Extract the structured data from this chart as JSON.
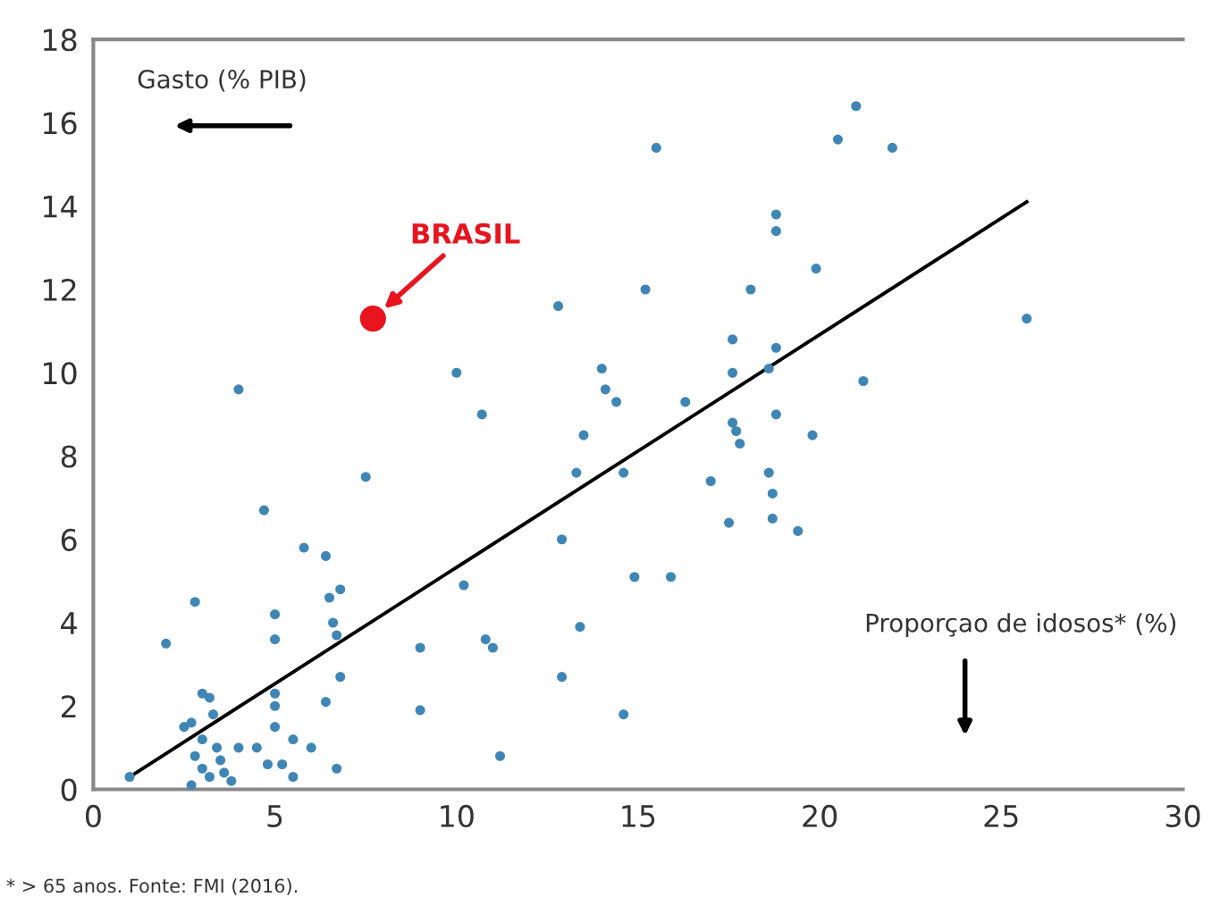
{
  "chart_data": {
    "type": "scatter",
    "xlim": [
      0,
      30
    ],
    "ylim": [
      0,
      18
    ],
    "xticks": [
      0,
      5,
      10,
      15,
      20,
      25,
      30
    ],
    "yticks": [
      0,
      2,
      4,
      6,
      8,
      10,
      12,
      14,
      16,
      18
    ],
    "grid": false,
    "annotations": [
      "Gasto (% PIB)",
      "Proporçao de idosos* (%)",
      "* > 65 anos. Fonte: FMI (2016)."
    ],
    "series": [
      {
        "marker": "circle",
        "color": "#3f86b5",
        "x": [
          1,
          2,
          2.5,
          2.7,
          2.8,
          3,
          3.2,
          3,
          3.3,
          2.8,
          3,
          3.2,
          2.7,
          3.5,
          3.8,
          3.4,
          3.6,
          4,
          4.5,
          4.8,
          4.7,
          4,
          5,
          5,
          5,
          5,
          5,
          5.2,
          5.5,
          5.5,
          5.8,
          6,
          6.4,
          6.5,
          6.8,
          6.6,
          6.7,
          6.8,
          6.4,
          6.7,
          7.5,
          9,
          9,
          10,
          10.2,
          10.7,
          10.8,
          11,
          11.2,
          12.8,
          12.9,
          12.9,
          13.3,
          13.5,
          13.4,
          14,
          14.1,
          14.4,
          14.6,
          14.6,
          14.9,
          15.2,
          15.5,
          15.9,
          16.3,
          17,
          17.5,
          17.6,
          17.7,
          17.8,
          17.6,
          17.6,
          18.1,
          18.6,
          18.6,
          18.7,
          18.8,
          18.7,
          18.8,
          18.8,
          18.8,
          19.4,
          19.9,
          19.8,
          20.5,
          21,
          21.2,
          22,
          25.7
        ],
        "values": [
          0.3,
          3.5,
          1.5,
          1.6,
          4.5,
          2.3,
          2.2,
          1.2,
          1.8,
          0.8,
          0.5,
          0.3,
          0.1,
          0.7,
          0.2,
          1,
          0.4,
          1,
          1,
          0.6,
          6.7,
          9.6,
          4.2,
          3.6,
          2.3,
          2,
          1.5,
          0.6,
          0.3,
          1.2,
          5.8,
          1,
          5.6,
          4.6,
          4.8,
          4,
          3.7,
          2.7,
          2.1,
          0.5,
          7.5,
          3.4,
          1.9,
          10,
          4.9,
          9,
          3.6,
          3.4,
          0.8,
          11.6,
          6,
          2.7,
          7.6,
          8.5,
          3.9,
          10.1,
          9.6,
          9.3,
          7.6,
          1.8,
          5.1,
          12,
          15.4,
          5.1,
          9.3,
          7.4,
          6.4,
          8.8,
          8.6,
          8.3,
          10,
          10.8,
          12,
          10.1,
          7.6,
          7.1,
          10.6,
          6.5,
          13.4,
          13.8,
          9,
          6.2,
          12.5,
          8.5,
          15.6,
          16.4,
          9.8,
          15.4,
          11.3
        ]
      },
      {
        "marker": "circle",
        "name": "BRASIL",
        "color": "#e8141e",
        "x": [
          7.7
        ],
        "values": [
          11.3
        ]
      },
      {
        "type": "line",
        "marker": "none",
        "color": "#000000",
        "x": [
          1,
          25.7
        ],
        "values": [
          0.3,
          14.1
        ]
      }
    ]
  }
}
